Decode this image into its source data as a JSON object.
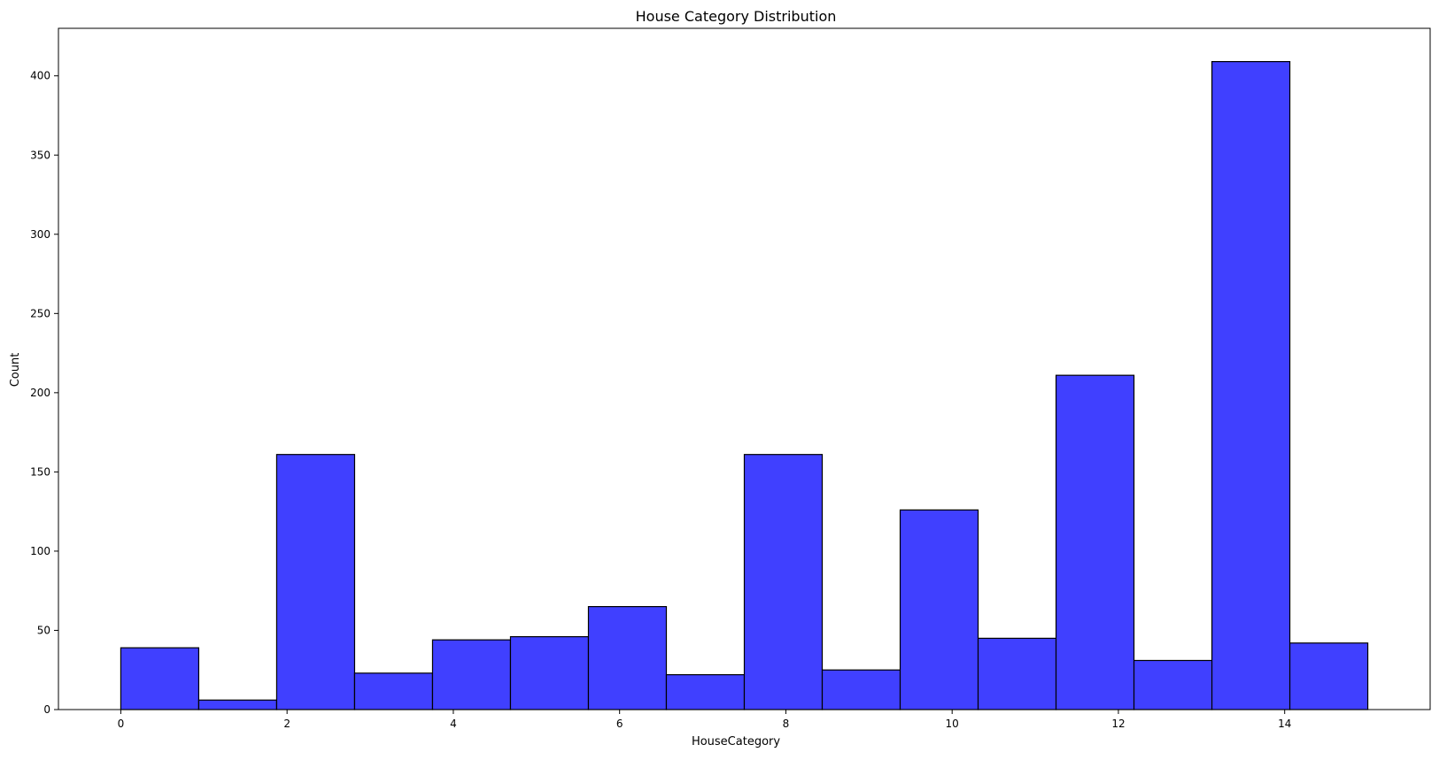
{
  "chart_data": {
    "type": "bar",
    "title": "House Category Distribution",
    "xlabel": "HouseCategory",
    "ylabel": "Count",
    "xlim": [
      -0.75,
      15.75
    ],
    "ylim": [
      0,
      430
    ],
    "bin_edges": [
      0,
      0.9375,
      1.875,
      2.8125,
      3.75,
      4.6875,
      5.625,
      6.5625,
      7.5,
      8.4375,
      9.375,
      10.3125,
      11.25,
      12.1875,
      13.125,
      14.0625,
      15
    ],
    "values": [
      39,
      6,
      161,
      23,
      44,
      46,
      65,
      22,
      161,
      25,
      126,
      45,
      211,
      31,
      409,
      42
    ],
    "x_ticks": [
      0,
      2,
      4,
      6,
      8,
      10,
      12,
      14
    ],
    "y_ticks": [
      0,
      50,
      100,
      150,
      200,
      250,
      300,
      350,
      400
    ],
    "bar_color": "#4040ff",
    "edge_color": "#000000",
    "grid": false,
    "legend": null
  }
}
